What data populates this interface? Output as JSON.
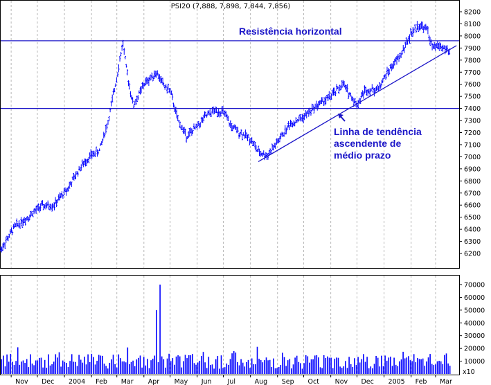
{
  "title": "PSI20 (7,888, 7,898, 7,844, 7,856)",
  "chart_data": {
    "type": "candlestick",
    "title": "PSI20 (7,888, 7,898, 7,844, 7,856)",
    "price_axis": {
      "min": 6200,
      "max": 8200,
      "ticks": [
        "6200",
        "6300",
        "6400",
        "6500",
        "6600",
        "6700",
        "6800",
        "6900",
        "7000",
        "7100",
        "7200",
        "7300",
        "7400",
        "7500",
        "7600",
        "7700",
        "7800",
        "7900",
        "8000",
        "8100",
        "8200"
      ]
    },
    "volume_axis": {
      "min": 0,
      "max": 70000,
      "ticks": [
        "10000",
        "20000",
        "30000",
        "40000",
        "50000",
        "60000",
        "70000"
      ],
      "multiplier_label": "x10"
    },
    "x_axis": {
      "months": [
        "Nov",
        "Dec",
        "2004",
        "Feb",
        "Mar",
        "Apr",
        "May",
        "Jun",
        "Jul",
        "Aug",
        "Sep",
        "Oct",
        "Nov",
        "Dec",
        "2005",
        "Feb",
        "Mar"
      ]
    },
    "price_path": [
      [
        "2003-10-20",
        6230
      ],
      [
        "2003-11-05",
        6420
      ],
      [
        "2003-11-20",
        6500
      ],
      [
        "2003-12-05",
        6590
      ],
      [
        "2003-12-20",
        6600
      ],
      [
        "2004-01-05",
        6740
      ],
      [
        "2004-01-20",
        6920
      ],
      [
        "2004-01-31",
        7010
      ],
      [
        "2004-02-10",
        7050
      ],
      [
        "2004-02-20",
        7290
      ],
      [
        "2004-03-01",
        7660
      ],
      [
        "2004-03-08",
        7950
      ],
      [
        "2004-03-12",
        7720
      ],
      [
        "2004-03-20",
        7420
      ],
      [
        "2004-04-01",
        7600
      ],
      [
        "2004-04-15",
        7700
      ],
      [
        "2004-04-25",
        7580
      ],
      [
        "2004-05-01",
        7550
      ],
      [
        "2004-05-10",
        7300
      ],
      [
        "2004-05-20",
        7170
      ],
      [
        "2004-06-01",
        7250
      ],
      [
        "2004-06-10",
        7330
      ],
      [
        "2004-06-20",
        7380
      ],
      [
        "2004-07-01",
        7370
      ],
      [
        "2004-07-10",
        7250
      ],
      [
        "2004-07-20",
        7200
      ],
      [
        "2004-08-01",
        7150
      ],
      [
        "2004-08-10",
        7040
      ],
      [
        "2004-08-20",
        7010
      ],
      [
        "2004-09-01",
        7120
      ],
      [
        "2004-09-15",
        7270
      ],
      [
        "2004-10-01",
        7330
      ],
      [
        "2004-10-15",
        7420
      ],
      [
        "2004-11-01",
        7500
      ],
      [
        "2004-11-15",
        7600
      ],
      [
        "2004-12-01",
        7430
      ],
      [
        "2004-12-10",
        7550
      ],
      [
        "2004-12-25",
        7560
      ],
      [
        "2005-01-05",
        7700
      ],
      [
        "2005-01-20",
        7840
      ],
      [
        "2005-02-01",
        8020
      ],
      [
        "2005-02-10",
        8090
      ],
      [
        "2005-02-20",
        8050
      ],
      [
        "2005-02-25",
        7900
      ],
      [
        "2005-03-05",
        7920
      ],
      [
        "2005-03-15",
        7880
      ],
      [
        "2005-03-18",
        7856
      ]
    ],
    "last_ohlc": {
      "open": 7888,
      "high": 7898,
      "low": 7844,
      "close": 7856
    },
    "horizontal_lines": [
      {
        "value": 7960,
        "label": "Resistência horizontal"
      },
      {
        "value": 7400,
        "label": ""
      }
    ],
    "trendline": {
      "start": [
        "2004-08-10",
        6960
      ],
      "end": [
        "2005-03-25",
        7920
      ]
    },
    "volume_note": "daily volume bars, mostly 5000-20000, spikes near 50000 and 70000 in mid-April 2004",
    "colors": {
      "price": "#0000ff",
      "lines": "#1c16c8",
      "volume": "#0000ff",
      "grid": "#b8b8b8",
      "annotation": "#1c16c8"
    }
  },
  "annotations": {
    "resistance": "Resistência horizontal",
    "trend_line1": "Linha de tendência",
    "trend_line2": "ascendente de",
    "trend_line3": "médio prazo"
  }
}
